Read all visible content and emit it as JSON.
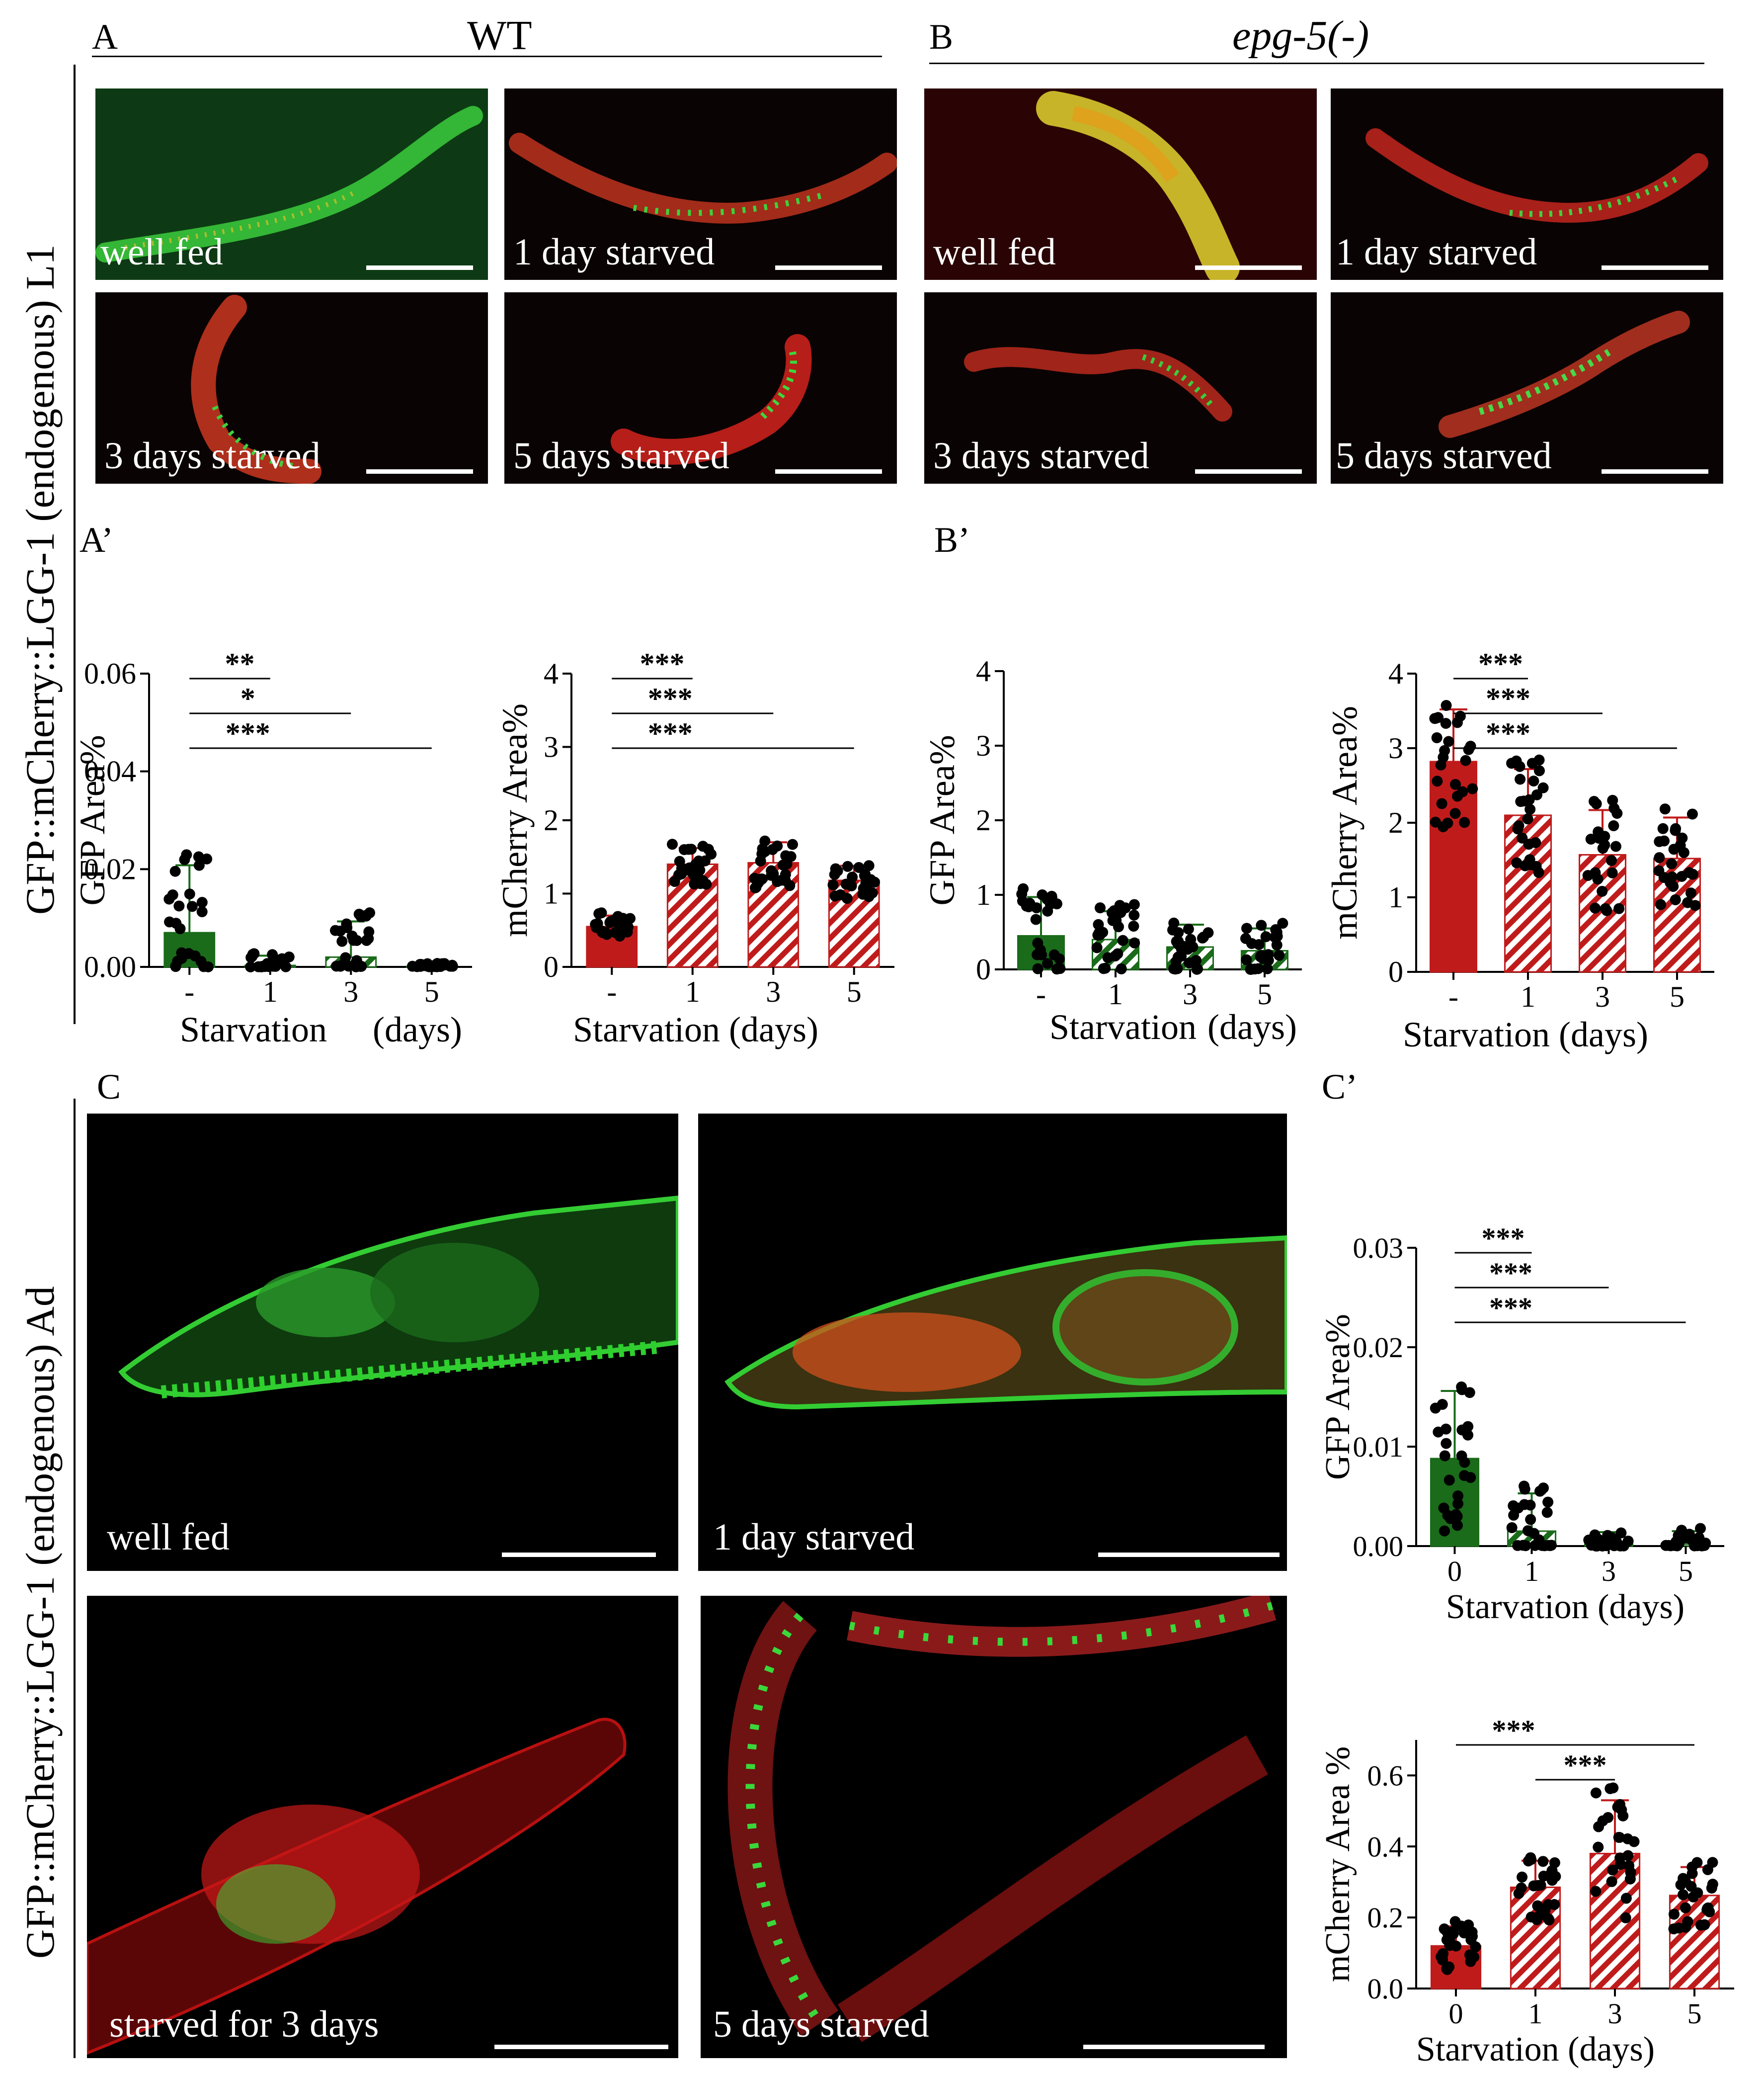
{
  "figure": {
    "side_label_top": "GFP::mCherry::LGG-1 (endogenous) L1",
    "side_label_bottom": "GFP::mCherry::LGG-1 (endogenous) Ad",
    "panel_A": {
      "letter": "A",
      "title": "WT"
    },
    "panel_B": {
      "letter": "B",
      "title": "epg-5(-)"
    },
    "panel_C": {
      "letter": "C"
    },
    "panel_Ap": {
      "letter": "A’"
    },
    "panel_Bp": {
      "letter": "B’"
    },
    "panel_Cp": {
      "letter": "C’"
    },
    "micrographs": {
      "A1": "well fed",
      "A2": "1 day starved",
      "A3": "3 days starved",
      "A4": "5 days starved",
      "B1": "well fed",
      "B2": "1 day starved",
      "B3": "3 days starved",
      "B4": "5 days starved",
      "C1": "well fed",
      "C2": "1 day starved",
      "C3": "starved for 3 days",
      "C4": "5 days starved"
    }
  },
  "colors": {
    "green": "#1a6b1a",
    "red": "#c01b1b",
    "dot": "#000000"
  },
  "chart_data": [
    {
      "id": "Ap_gfp",
      "type": "bar",
      "categories": [
        "-",
        "1",
        "3",
        "5"
      ],
      "values": [
        0.007,
        0.0003,
        0.002,
        0.0001
      ],
      "errors": [
        0.0138,
        0.002,
        0.0073,
        0.0005
      ],
      "fills": [
        "solid",
        "hatched",
        "hatched",
        "hatched"
      ],
      "color": "green",
      "ylabel": "GFP Area%",
      "xlabel_a": "Starvation",
      "xlabel_b": "(days)",
      "ylim": [
        0,
        0.06
      ],
      "yticks": [
        "0.00",
        "0.02",
        "0.04",
        "0.06"
      ],
      "ytick_values": [
        0,
        0.02,
        0.04,
        0.06
      ],
      "sig": [
        {
          "label": "**",
          "to": 1
        },
        {
          "label": "*",
          "to": 2
        },
        {
          "label": "***",
          "to": 3
        }
      ]
    },
    {
      "id": "Ap_mcherry",
      "type": "bar",
      "categories": [
        "-",
        "1",
        "3",
        "5"
      ],
      "values": [
        0.55,
        1.4,
        1.42,
        1.18
      ],
      "errors": [
        0.15,
        0.22,
        0.28,
        0.2
      ],
      "fills": [
        "solid",
        "hatched",
        "hatched",
        "hatched"
      ],
      "color": "red",
      "ylabel": "mCherry Area%",
      "xlabel": "Starvation (days)",
      "ylim": [
        0,
        4
      ],
      "yticks": [
        "0",
        "1",
        "2",
        "3",
        "4"
      ],
      "ytick_values": [
        0,
        1,
        2,
        3,
        4
      ],
      "sig": [
        {
          "label": "***",
          "to": 1
        },
        {
          "label": "***",
          "to": 2
        },
        {
          "label": "***",
          "to": 3
        }
      ]
    },
    {
      "id": "Bp_gfp",
      "type": "bar",
      "categories": [
        "-",
        "1",
        "3",
        "5"
      ],
      "values": [
        0.45,
        0.4,
        0.3,
        0.25
      ],
      "errors": [
        0.52,
        0.38,
        0.3,
        0.3
      ],
      "fills": [
        "solid",
        "hatched",
        "hatched",
        "hatched"
      ],
      "color": "green",
      "ylabel": "GFP Area%",
      "xlabel_a": "Starvation",
      "xlabel_b": "(days)",
      "ylim": [
        0,
        4
      ],
      "yticks": [
        "0",
        "1",
        "2",
        "3",
        "4"
      ],
      "ytick_values": [
        0,
        1,
        2,
        3,
        4
      ],
      "sig": []
    },
    {
      "id": "Bp_mcherry",
      "type": "bar",
      "categories": [
        "-",
        "1",
        "3",
        "5"
      ],
      "values": [
        2.82,
        2.1,
        1.57,
        1.52
      ],
      "errors": [
        0.7,
        0.62,
        0.6,
        0.55
      ],
      "fills": [
        "solid",
        "hatched",
        "hatched",
        "hatched"
      ],
      "color": "red",
      "ylabel": "mCherry Area%",
      "xlabel": "Starvation (days)",
      "ylim": [
        0,
        4
      ],
      "yticks": [
        "0",
        "1",
        "2",
        "3",
        "4"
      ],
      "ytick_values": [
        0,
        1,
        2,
        3,
        4
      ],
      "sig": [
        {
          "label": "***",
          "to": 1
        },
        {
          "label": "***",
          "to": 2
        },
        {
          "label": "***",
          "to": 3
        }
      ]
    },
    {
      "id": "Cp_gfp",
      "type": "bar",
      "categories": [
        "0",
        "1",
        "3",
        "5"
      ],
      "values": [
        0.0088,
        0.0015,
        0.0002,
        0.0002
      ],
      "errors": [
        0.0068,
        0.0038,
        0.0012,
        0.0013
      ],
      "fills": [
        "solid",
        "hatched",
        "hatched",
        "hatched"
      ],
      "color": "green",
      "ylabel": "GFP Area%",
      "xlabel": "Starvation (days)",
      "ylim": [
        0,
        0.03
      ],
      "yticks": [
        "0.00",
        "0.01",
        "0.02",
        "0.03"
      ],
      "ytick_values": [
        0,
        0.01,
        0.02,
        0.03
      ],
      "sig": [
        {
          "label": "***",
          "to": 1
        },
        {
          "label": "***",
          "to": 2
        },
        {
          "label": "***",
          "to": 3
        }
      ]
    },
    {
      "id": "Cp_mcherry",
      "type": "bar",
      "categories": [
        "0",
        "1",
        "3",
        "5"
      ],
      "values": [
        0.12,
        0.285,
        0.38,
        0.262
      ],
      "errors": [
        0.055,
        0.075,
        0.15,
        0.08
      ],
      "fills": [
        "solid",
        "hatched",
        "hatched",
        "hatched"
      ],
      "color": "red",
      "ylabel": "mCherry Area %",
      "xlabel": "Starvation (days)",
      "ylim": [
        0,
        0.7
      ],
      "yticks": [
        "0.0",
        "0.2",
        "0.4",
        "0.6"
      ],
      "ytick_values": [
        0,
        0.2,
        0.4,
        0.6
      ],
      "sig": [
        {
          "label": "***",
          "from": 0,
          "to": 3
        },
        {
          "label": "***",
          "from": 1,
          "to": 2
        }
      ]
    }
  ]
}
